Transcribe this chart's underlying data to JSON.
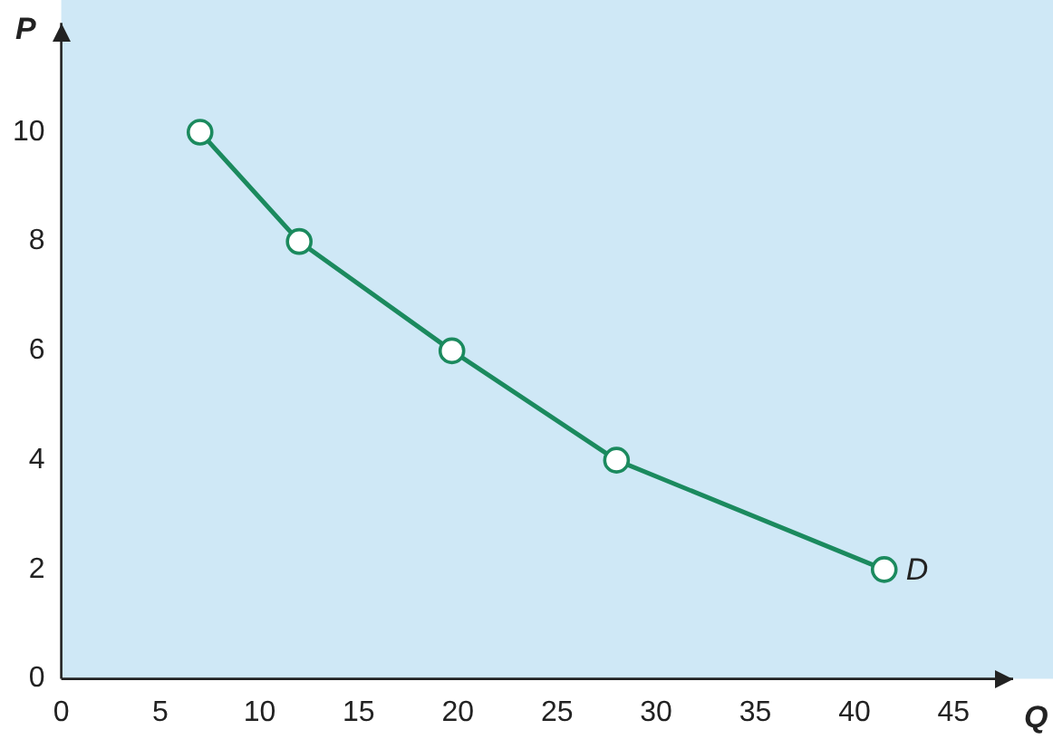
{
  "chart_data": {
    "type": "line",
    "xlabel": "Q",
    "ylabel": "P",
    "x": [
      7,
      12,
      19.7,
      28,
      41.5
    ],
    "series": [
      {
        "color": "#1b8a5e",
        "values": [
          10,
          8,
          6,
          4,
          2
        ]
      }
    ],
    "xlim": [
      0,
      48
    ],
    "ylim": [
      0,
      12
    ],
    "xticks": [
      0,
      5,
      10,
      15,
      20,
      25,
      30,
      35,
      40,
      45
    ],
    "yticks": [
      0,
      2,
      4,
      6,
      8,
      10
    ],
    "grid": false,
    "legend": false,
    "marker": "circle",
    "line_style": "solid",
    "annotations": [
      {
        "text": "D",
        "x": 41.5,
        "y": 2
      }
    ]
  }
}
